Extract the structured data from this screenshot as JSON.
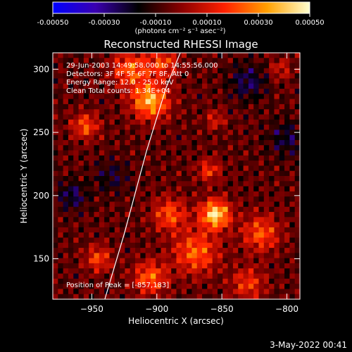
{
  "colorbar": {
    "ticks": [
      "-0.00050",
      "-0.00030",
      "-0.00010",
      "0.00010",
      "0.00030",
      "0.00050"
    ],
    "unit_label": "(photons cm⁻² s⁻¹ asec⁻²)",
    "range": [
      -0.0005,
      0.0005
    ],
    "colors": [
      "#0000ff",
      "#3a00b0",
      "#000000",
      "#8a0000",
      "#ff2000",
      "#ffa000",
      "#ffffd0"
    ]
  },
  "chart_data": {
    "type": "heatmap",
    "title": "Reconstructed RHESSI Image",
    "xlabel": "Heliocentric X (arcsec)",
    "ylabel": "Heliocentric Y (arcsec)",
    "xlim": [
      -980,
      -790
    ],
    "ylim": [
      118,
      313
    ],
    "x_ticks": [
      -950,
      -900,
      -850,
      -800
    ],
    "x_tick_labels": [
      "−950",
      "−900",
      "−850",
      "−800"
    ],
    "y_ticks": [
      150,
      200,
      250,
      300
    ],
    "y_tick_labels": [
      "150",
      "200",
      "250",
      "300"
    ],
    "annotations": [
      "29-Jun-2003 14:49:58.000 to 14:55:56.000",
      "Detectors: 3F 4F 5F 6F 7F 8F, Att 0",
      "Energy Range: 12.0 - 25.0 keV",
      "Clean     Total counts: 1.34E+04"
    ],
    "peak_label": "Position of Peak = [-857,183]",
    "peak": [
      -857,
      183
    ],
    "limb_curve": [
      [
        -940,
        118
      ],
      [
        -925,
        170
      ],
      [
        -908,
        235
      ],
      [
        -893,
        285
      ],
      [
        -882,
        313
      ]
    ],
    "grid": false,
    "sources": [
      {
        "x": -855,
        "y": 185,
        "amp": 1.0,
        "w": 8
      },
      {
        "x": -905,
        "y": 275,
        "amp": 0.85,
        "w": 10
      },
      {
        "x": -920,
        "y": 300,
        "amp": 0.6,
        "w": 10
      },
      {
        "x": -895,
        "y": 305,
        "amp": 0.5,
        "w": 8
      },
      {
        "x": -955,
        "y": 255,
        "amp": 0.55,
        "w": 7
      },
      {
        "x": -870,
        "y": 155,
        "amp": 0.6,
        "w": 12
      },
      {
        "x": -890,
        "y": 185,
        "amp": 0.55,
        "w": 9
      },
      {
        "x": -905,
        "y": 135,
        "amp": 0.6,
        "w": 9
      },
      {
        "x": -945,
        "y": 150,
        "amp": 0.5,
        "w": 7
      },
      {
        "x": -820,
        "y": 170,
        "amp": 0.55,
        "w": 10
      },
      {
        "x": -830,
        "y": 130,
        "amp": 0.45,
        "w": 9
      },
      {
        "x": -860,
        "y": 220,
        "amp": 0.45,
        "w": 6
      },
      {
        "x": -855,
        "y": 260,
        "amp": 0.35,
        "w": 5
      },
      {
        "x": -805,
        "y": 300,
        "amp": 0.3,
        "w": 6
      },
      {
        "x": -965,
        "y": 200,
        "amp": -0.35,
        "w": 8
      },
      {
        "x": -830,
        "y": 290,
        "amp": -0.35,
        "w": 10
      },
      {
        "x": -800,
        "y": 245,
        "amp": -0.3,
        "w": 10
      },
      {
        "x": -935,
        "y": 215,
        "amp": -0.25,
        "w": 9
      }
    ]
  },
  "footer": {
    "timestamp": "3-May-2022 00:41"
  }
}
